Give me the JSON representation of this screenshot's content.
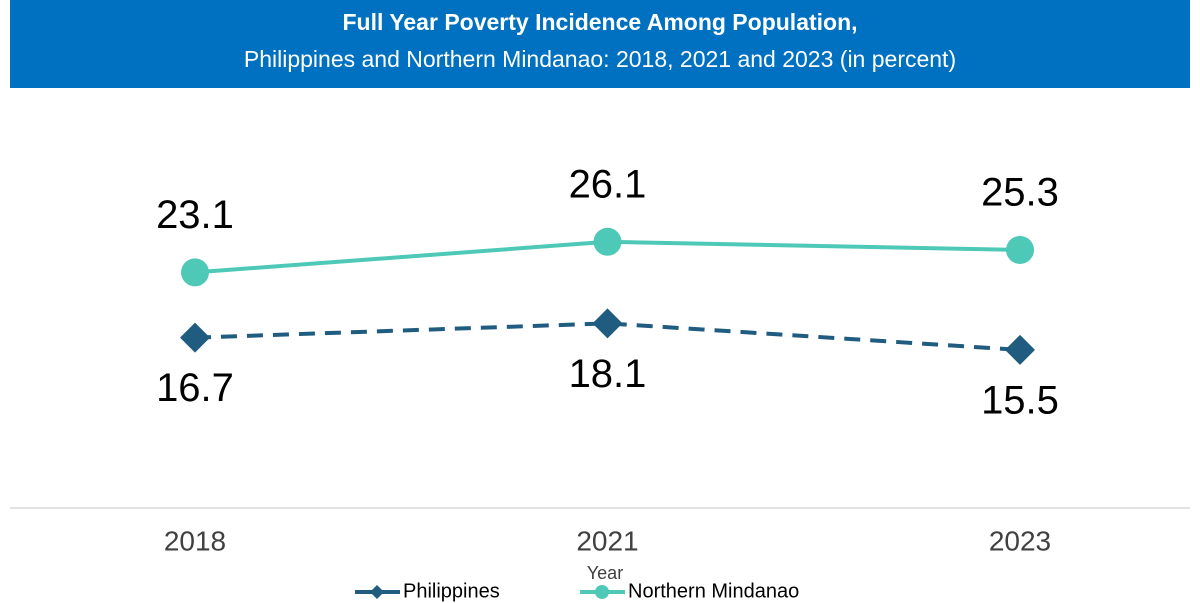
{
  "chart_data": {
    "type": "line",
    "title": "Full Year Poverty Incidence Among Population,",
    "subtitle": "Philippines and Northern Mindanao: 2018, 2021 and 2023 (in percent)",
    "x_label": "Year",
    "categories": [
      "2018",
      "2021",
      "2023"
    ],
    "series": [
      {
        "name": "Philippines",
        "color": "#1f5c80",
        "marker": "diamond",
        "dash": true,
        "label_position": "below",
        "values": [
          16.7,
          18.1,
          15.5
        ]
      },
      {
        "name": "Northern Mindanao",
        "color": "#4fc9b7",
        "marker": "circle",
        "dash": false,
        "label_position": "above",
        "values": [
          23.1,
          26.1,
          25.3
        ]
      }
    ],
    "ylim": [
      0,
      40
    ],
    "legend": "bottom"
  }
}
